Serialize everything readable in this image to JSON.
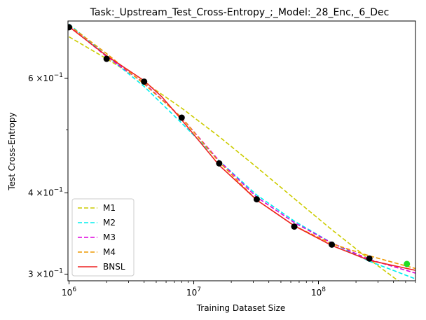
{
  "chart_data": {
    "type": "line",
    "title": "Task:_Upstream_Test_Cross-Entropy_;_Model:_28_Enc,_6_Dec",
    "xlabel": "Training Dataset Size",
    "ylabel": "Test Cross-Entropy",
    "xscale": "log",
    "yscale": "log",
    "xlim": [
      980000,
      600000000
    ],
    "ylim": [
      0.293,
      0.735
    ],
    "grid": false,
    "legend_position": "lower-left",
    "x_ticks": [
      {
        "value": 1000000,
        "base": "10",
        "exp": "6"
      },
      {
        "value": 10000000,
        "base": "10",
        "exp": "7"
      },
      {
        "value": 100000000,
        "base": "10",
        "exp": "8"
      }
    ],
    "y_ticks": [
      {
        "value": 0.6,
        "mant": "6",
        "base": "×10",
        "exp": "−1"
      },
      {
        "value": 0.4,
        "mant": "4",
        "base": "×10",
        "exp": "−1"
      },
      {
        "value": 0.3,
        "mant": "3",
        "base": "×10",
        "exp": "−1"
      }
    ],
    "y_minor_ticks": [
      0.5
    ],
    "train_points": {
      "color": "#000000",
      "x": [
        1000000,
        2000000,
        4000000,
        8000000,
        16000000,
        32000000,
        64000000,
        128000000,
        256000000
      ],
      "y": [
        0.719,
        0.643,
        0.593,
        0.522,
        0.444,
        0.391,
        0.355,
        0.333,
        0.317
      ]
    },
    "test_points": {
      "color": "#22dd22",
      "x": [
        512000000
      ],
      "y": [
        0.311
      ]
    },
    "series": [
      {
        "name": "M1",
        "color": "#cccc00",
        "dash": "dashed",
        "x": [
          1000000,
          2000000,
          4000000,
          8000000,
          16000000,
          32000000,
          64000000,
          128000000,
          256000000,
          600000000
        ],
        "y": [
          0.695,
          0.643,
          0.592,
          0.54,
          0.488,
          0.438,
          0.392,
          0.351,
          0.316,
          0.28
        ]
      },
      {
        "name": "M2",
        "color": "#00eeee",
        "dash": "dashed",
        "x": [
          1000000,
          2000000,
          4000000,
          8000000,
          16000000,
          32000000,
          64000000,
          128000000,
          256000000,
          600000000
        ],
        "y": [
          0.727,
          0.65,
          0.583,
          0.512,
          0.448,
          0.397,
          0.362,
          0.335,
          0.314,
          0.295
        ]
      },
      {
        "name": "M3",
        "color": "#dd00dd",
        "dash": "dashed",
        "x": [
          1000000,
          2000000,
          4000000,
          8000000,
          16000000,
          32000000,
          64000000,
          128000000,
          256000000,
          600000000
        ],
        "y": [
          0.722,
          0.648,
          0.59,
          0.522,
          0.448,
          0.394,
          0.36,
          0.335,
          0.316,
          0.301
        ]
      },
      {
        "name": "M4",
        "color": "#ee9900",
        "dash": "dashed",
        "x": [
          1000000,
          2000000,
          4000000,
          8000000,
          16000000,
          32000000,
          64000000,
          128000000,
          256000000,
          600000000
        ],
        "y": [
          0.724,
          0.655,
          0.588,
          0.522,
          0.446,
          0.39,
          0.356,
          0.334,
          0.32,
          0.306
        ]
      },
      {
        "name": "BNSL",
        "color": "#ee2222",
        "dash": "solid",
        "x": [
          1000000,
          2000000,
          4000000,
          5500000,
          8000000,
          16000000,
          32000000,
          64000000,
          128000000,
          256000000,
          600000000
        ],
        "y": [
          0.72,
          0.65,
          0.595,
          0.563,
          0.518,
          0.441,
          0.39,
          0.356,
          0.332,
          0.315,
          0.304
        ]
      }
    ]
  }
}
